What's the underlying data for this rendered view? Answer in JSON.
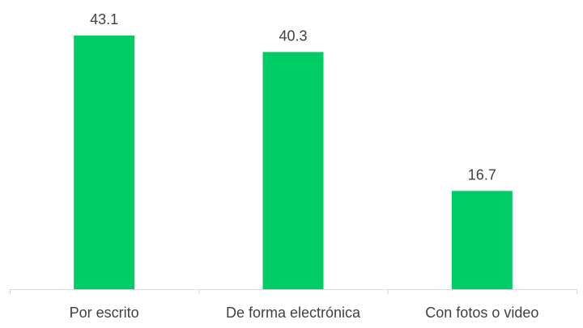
{
  "chart_data": {
    "type": "bar",
    "categories": [
      "Por escrito",
      "De forma electrónica",
      "Con fotos o video"
    ],
    "values": [
      43.1,
      40.3,
      16.7
    ],
    "data_labels": [
      "43.1",
      "40.3",
      "16.7"
    ],
    "title": "",
    "xlabel": "",
    "ylabel": "",
    "ylim": [
      0,
      45
    ],
    "grid": false,
    "legend": "none",
    "bar_color": "#00cc66",
    "axis_color": "#d9d9d9",
    "text_color": "#404040"
  }
}
